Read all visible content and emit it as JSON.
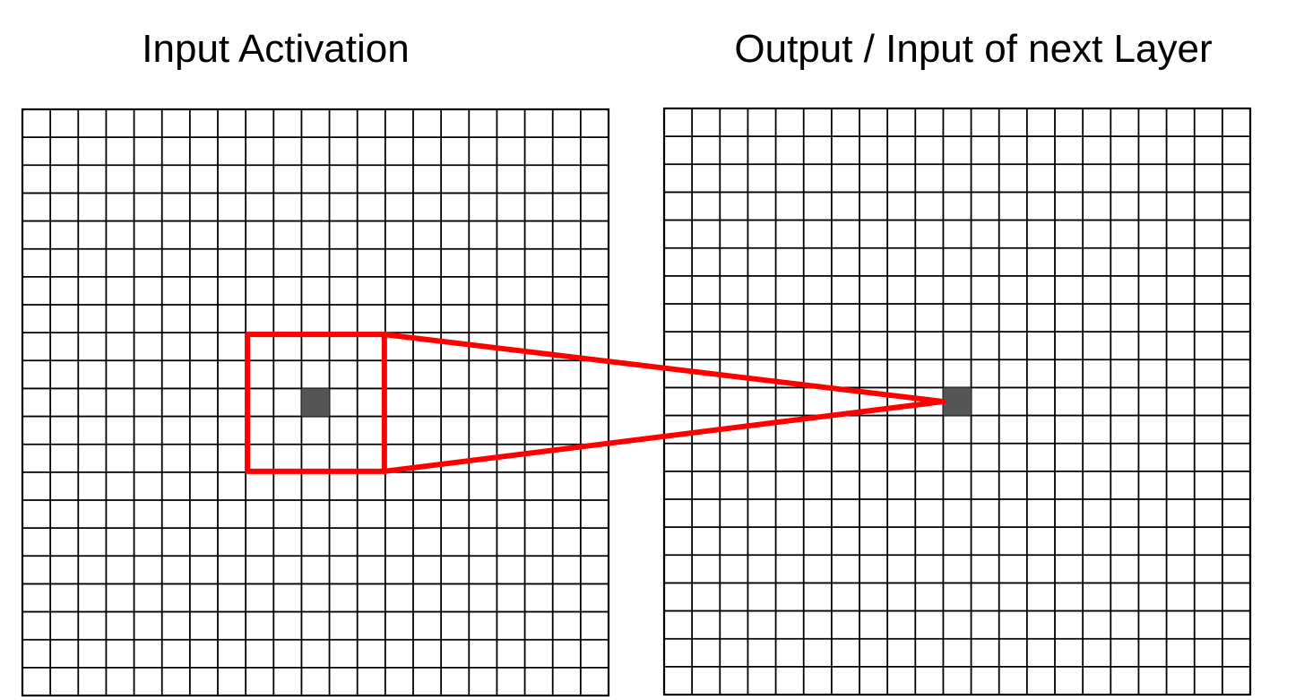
{
  "left_panel": {
    "title": "Input Activation",
    "grid_cells": 21
  },
  "right_panel": {
    "title": "Output / Input of next Layer",
    "grid_cells": 21
  },
  "receptive_field": {
    "kernel_size": 5,
    "input_center_cell": [
      10,
      10
    ],
    "output_cell": [
      10,
      10
    ]
  },
  "colors": {
    "grid_line": "#000000",
    "highlight_cell": "#555555",
    "receptive_field": "#ff0000",
    "background": "#ffffff"
  }
}
